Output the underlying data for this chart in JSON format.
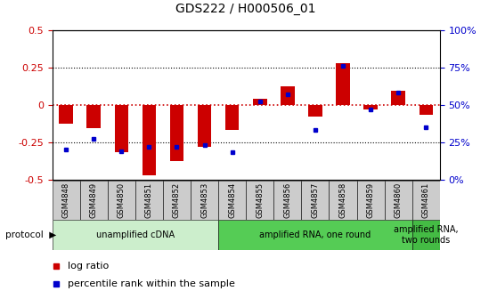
{
  "title": "GDS222 / H000506_01",
  "samples": [
    "GSM4848",
    "GSM4849",
    "GSM4850",
    "GSM4851",
    "GSM4852",
    "GSM4853",
    "GSM4854",
    "GSM4855",
    "GSM4856",
    "GSM4857",
    "GSM4858",
    "GSM4859",
    "GSM4860",
    "GSM4861"
  ],
  "log_ratio": [
    -0.13,
    -0.16,
    -0.32,
    -0.47,
    -0.38,
    -0.28,
    -0.17,
    0.04,
    0.12,
    -0.08,
    0.28,
    -0.03,
    0.09,
    -0.07
  ],
  "percentile_rank": [
    20,
    27,
    19,
    22,
    22,
    23,
    18,
    52,
    57,
    33,
    76,
    47,
    58,
    35
  ],
  "bar_color": "#cc0000",
  "dot_color": "#0000cc",
  "protocols": [
    {
      "label": "unamplified cDNA",
      "start": 0,
      "end": 6,
      "color": "#cceecc"
    },
    {
      "label": "amplified RNA, one round",
      "start": 6,
      "end": 13,
      "color": "#55cc55"
    },
    {
      "label": "amplified RNA,\ntwo rounds",
      "start": 13,
      "end": 14,
      "color": "#44bb44"
    }
  ],
  "ylim_left": [
    -0.5,
    0.5
  ],
  "ylim_right": [
    0,
    100
  ],
  "yticks_left": [
    -0.5,
    -0.25,
    0,
    0.25,
    0.5
  ],
  "yticks_right": [
    0,
    25,
    50,
    75,
    100
  ],
  "zero_line_color": "#cc0000",
  "legend_red_label": "log ratio",
  "legend_blue_label": "percentile rank within the sample",
  "sample_box_color": "#cccccc",
  "bar_width": 0.5
}
